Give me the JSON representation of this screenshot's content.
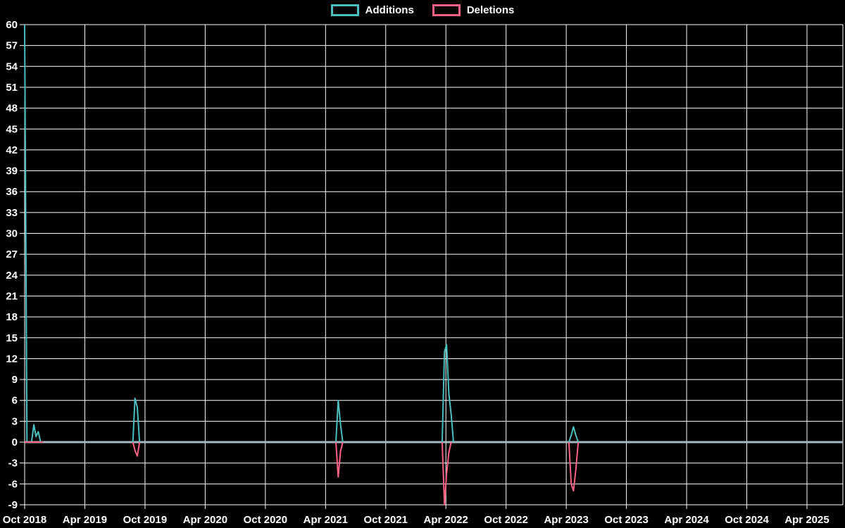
{
  "page": {
    "background": "#000000"
  },
  "legend": {
    "items": [
      {
        "label": "Additions",
        "color": "#4bc0c0"
      },
      {
        "label": "Deletions",
        "color": "#ff6384"
      }
    ]
  },
  "chart_data": {
    "type": "line",
    "title": "",
    "legend_position": "top",
    "grid": true,
    "background_color": "#000000",
    "grid_color": "#ffffff",
    "text_color": "#ffffff",
    "zero_line_color": "#a6b9c3",
    "line_width": 2,
    "x_axis": {
      "type": "time",
      "start": "2018-10-01",
      "end": "2025-07-15",
      "tick_interval_months": 6,
      "tick_labels": [
        "Oct 2018",
        "Apr 2019",
        "Oct 2019",
        "Apr 2020",
        "Oct 2020",
        "Apr 2021",
        "Oct 2021",
        "Apr 2022",
        "Oct 2022",
        "Apr 2023",
        "Oct 2023",
        "Apr 2024",
        "Oct 2024",
        "Apr 2025"
      ]
    },
    "y_axis": {
      "min": -9,
      "max": 60,
      "tick_step": 3,
      "tick_labels": [
        "60",
        "57",
        "54",
        "51",
        "48",
        "45",
        "42",
        "39",
        "36",
        "33",
        "30",
        "27",
        "24",
        "21",
        "18",
        "15",
        "12",
        "9",
        "6",
        "3",
        "0",
        "-3",
        "-6",
        "-9"
      ]
    },
    "series": [
      {
        "name": "Additions",
        "color": "#4bc0c0",
        "segments": [
          [
            [
              "2018-10-01",
              60
            ],
            [
              "2018-10-08",
              0
            ],
            [
              "2018-10-22",
              0
            ],
            [
              "2018-10-29",
              2.5
            ],
            [
              "2018-11-05",
              0.8
            ],
            [
              "2018-11-12",
              1.5
            ],
            [
              "2018-11-19",
              0
            ]
          ],
          [
            [
              "2019-08-25",
              0
            ],
            [
              "2019-09-01",
              6.3
            ],
            [
              "2019-09-08",
              5
            ],
            [
              "2019-09-15",
              0
            ]
          ],
          [
            [
              "2021-05-02",
              0
            ],
            [
              "2021-05-09",
              6
            ],
            [
              "2021-05-16",
              2.5
            ],
            [
              "2021-05-23",
              0
            ]
          ],
          [
            [
              "2022-03-20",
              0
            ],
            [
              "2022-03-27",
              13
            ],
            [
              "2022-04-03",
              14
            ],
            [
              "2022-04-10",
              7
            ],
            [
              "2022-04-17",
              4
            ],
            [
              "2022-04-24",
              0
            ]
          ],
          [
            [
              "2023-04-09",
              0
            ],
            [
              "2023-04-16",
              1
            ],
            [
              "2023-04-23",
              2.2
            ],
            [
              "2023-04-30",
              1
            ],
            [
              "2023-05-07",
              0
            ]
          ]
        ]
      },
      {
        "name": "Deletions",
        "color": "#ff6384",
        "segments": [
          [
            [
              "2018-10-01",
              0
            ],
            [
              "2018-11-26",
              0
            ]
          ],
          [
            [
              "2019-08-25",
              0
            ],
            [
              "2019-09-01",
              -1.2
            ],
            [
              "2019-09-08",
              -2
            ],
            [
              "2019-09-15",
              0
            ]
          ],
          [
            [
              "2021-05-02",
              0
            ],
            [
              "2021-05-09",
              -5
            ],
            [
              "2021-05-16",
              -1.3
            ],
            [
              "2021-05-23",
              0
            ]
          ],
          [
            [
              "2022-03-20",
              0
            ],
            [
              "2022-03-27",
              -9
            ],
            [
              "2022-04-03",
              -4.5
            ],
            [
              "2022-04-10",
              -1.5
            ],
            [
              "2022-04-17",
              0
            ]
          ],
          [
            [
              "2023-04-09",
              0
            ],
            [
              "2023-04-16",
              -6
            ],
            [
              "2023-04-23",
              -7
            ],
            [
              "2023-04-30",
              -4
            ],
            [
              "2023-05-07",
              0
            ]
          ]
        ]
      }
    ]
  }
}
